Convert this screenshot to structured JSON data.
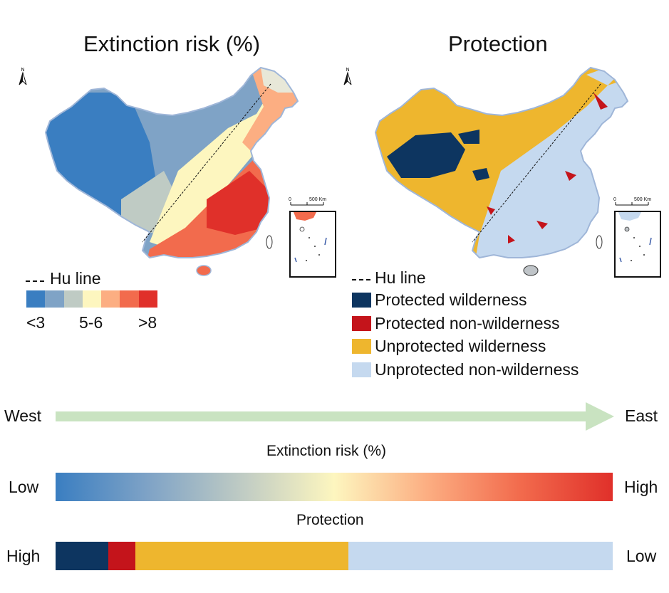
{
  "left_panel": {
    "title": "Extinction risk (%)",
    "hu_line_label": "Hu line",
    "scale_bar": {
      "start": "0",
      "end": "500 Km"
    },
    "ramp_colors": [
      "#3a7ec1",
      "#7fa3c6",
      "#bfcbc4",
      "#fdf6bf",
      "#fcae82",
      "#f26b4d",
      "#e0302a"
    ],
    "ramp_labels": {
      "low": "<3",
      "mid": "5-6",
      "high": ">8"
    }
  },
  "right_panel": {
    "title": "Protection",
    "hu_line_label": "Hu line",
    "scale_bar": {
      "start": "0",
      "end": "500 Km"
    },
    "legend": [
      {
        "label": "Protected wilderness",
        "color": "#0d3560"
      },
      {
        "label": "Protected non-wilderness",
        "color": "#c4141b"
      },
      {
        "label": "Unprotected wilderness",
        "color": "#eeb62e"
      },
      {
        "label": "Unprotected non-wilderness",
        "color": "#c5d9ef"
      }
    ]
  },
  "gradient_summary": {
    "direction": {
      "west": "West",
      "east": "East",
      "arrow_color": "#c9e3c1"
    },
    "risk_bar": {
      "label": "Extinction risk (%)",
      "left": "Low",
      "right": "High"
    },
    "protection_bar": {
      "label": "Protection",
      "left": "High",
      "right": "Low",
      "segments": [
        {
          "color": "#0d3560",
          "share": 0.095
        },
        {
          "color": "#c4141b",
          "share": 0.048
        },
        {
          "color": "#eeb62e",
          "share": 0.382
        },
        {
          "color": "#c5d9ef",
          "share": 0.475
        }
      ]
    }
  }
}
